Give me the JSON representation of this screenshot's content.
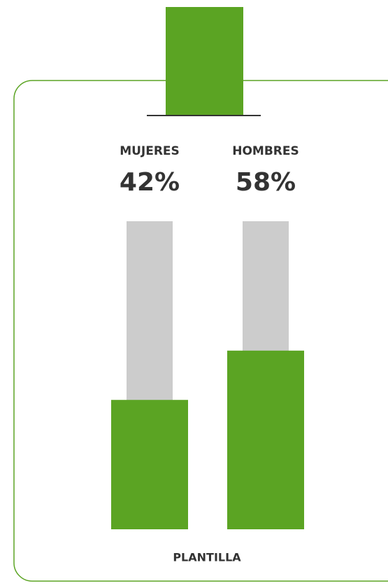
{
  "chart_data": {
    "type": "bar",
    "categories": [
      "MUJERES",
      "HOMBRES"
    ],
    "values": [
      42,
      58
    ],
    "value_labels": [
      "42%",
      "58%"
    ],
    "x_label": "PLANTILLA",
    "color": "#5ba423",
    "ylim": [
      0,
      100
    ]
  }
}
